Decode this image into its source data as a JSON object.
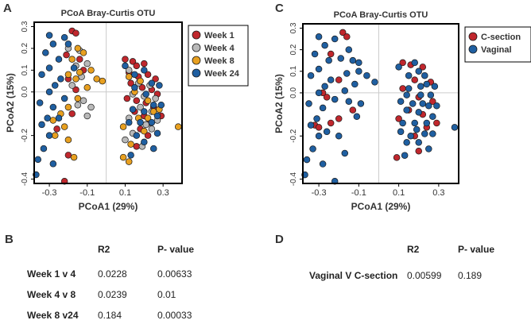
{
  "panel_labels": [
    "A",
    "B",
    "C",
    "D"
  ],
  "chart_data": [
    {
      "type": "scatter",
      "title": "PCoA Bray-Curtis OTU",
      "xlabel": "PCoA1 (29%)",
      "ylabel": "PCoA2 (15%)",
      "xlim": [
        -0.38,
        0.4
      ],
      "ylim": [
        -0.42,
        0.32
      ],
      "xticks": [
        -0.3,
        -0.1,
        0.1,
        0.3
      ],
      "xtick_labels": [
        "-0.3",
        "-0.1",
        "0.1",
        "0.3"
      ],
      "yticks": [
        -0.4,
        -0.2,
        0.0,
        0.1,
        0.2,
        0.3
      ],
      "ytick_labels": [
        "-0.4",
        "-0.2",
        "0.0",
        "0.1",
        "0.2",
        "0.3"
      ],
      "grid": "zero-lines",
      "legend_position": "top-right",
      "series": [
        {
          "name": "Week 1",
          "color": "#c0272d",
          "points": [
            [
              -0.18,
              0.28
            ],
            [
              -0.16,
              0.27
            ],
            [
              -0.21,
              0.17
            ],
            [
              -0.14,
              0.15
            ],
            [
              -0.12,
              0.1
            ],
            [
              -0.2,
              0.06
            ],
            [
              -0.16,
              0.01
            ],
            [
              -0.18,
              -0.1
            ],
            [
              -0.26,
              -0.17
            ],
            [
              -0.2,
              -0.29
            ],
            [
              -0.22,
              -0.41
            ],
            [
              0.1,
              0.15
            ],
            [
              0.14,
              0.14
            ],
            [
              0.16,
              0.12
            ],
            [
              0.2,
              0.13
            ],
            [
              0.12,
              0.09
            ],
            [
              0.17,
              0.07
            ],
            [
              0.22,
              0.08
            ],
            [
              0.26,
              0.06
            ],
            [
              0.13,
              0.04
            ],
            [
              0.19,
              0.02
            ],
            [
              0.24,
              0.01
            ],
            [
              0.27,
              -0.01
            ],
            [
              0.11,
              -0.03
            ],
            [
              0.16,
              -0.04
            ],
            [
              0.21,
              -0.05
            ],
            [
              0.25,
              -0.07
            ],
            [
              0.15,
              -0.09
            ],
            [
              0.2,
              -0.11
            ],
            [
              0.23,
              -0.14
            ],
            [
              0.18,
              -0.17
            ],
            [
              0.22,
              -0.2
            ],
            [
              0.16,
              -0.25
            ],
            [
              0.29,
              -0.11
            ]
          ]
        },
        {
          "name": "Week 4",
          "color": "#b9b9b9",
          "points": [
            [
              -0.2,
              0.2
            ],
            [
              -0.14,
              0.19
            ],
            [
              -0.1,
              0.13
            ],
            [
              -0.16,
              0.12
            ],
            [
              -0.13,
              0.07
            ],
            [
              -0.18,
              0.03
            ],
            [
              -0.12,
              -0.04
            ],
            [
              -0.08,
              -0.07
            ],
            [
              -0.15,
              -0.06
            ],
            [
              -0.1,
              -0.11
            ],
            [
              0.12,
              0.1
            ],
            [
              0.17,
              0.04
            ],
            [
              0.23,
              0.03
            ],
            [
              0.14,
              -0.01
            ],
            [
              0.2,
              -0.02
            ],
            [
              0.26,
              -0.03
            ],
            [
              0.18,
              -0.07
            ],
            [
              0.24,
              -0.09
            ],
            [
              0.12,
              -0.12
            ],
            [
              0.21,
              -0.15
            ],
            [
              0.27,
              -0.13
            ],
            [
              0.14,
              -0.19
            ],
            [
              0.19,
              -0.25
            ],
            [
              0.24,
              -0.17
            ],
            [
              0.1,
              -0.22
            ]
          ]
        },
        {
          "name": "Week 8",
          "color": "#e8a020",
          "points": [
            [
              -0.15,
              0.2
            ],
            [
              -0.18,
              0.15
            ],
            [
              -0.12,
              0.18
            ],
            [
              -0.14,
              0.09
            ],
            [
              -0.08,
              0.1
            ],
            [
              -0.05,
              0.06
            ],
            [
              -0.02,
              0.05
            ],
            [
              -0.16,
              0.06
            ],
            [
              -0.2,
              0.08
            ],
            [
              -0.1,
              0.02
            ],
            [
              -0.15,
              -0.03
            ],
            [
              -0.2,
              -0.07
            ],
            [
              -0.24,
              -0.1
            ],
            [
              -0.28,
              -0.13
            ],
            [
              -0.22,
              -0.16
            ],
            [
              -0.27,
              -0.2
            ],
            [
              -0.2,
              -0.22
            ],
            [
              -0.17,
              -0.3
            ],
            [
              0.12,
              0.07
            ],
            [
              0.18,
              0.05
            ],
            [
              0.15,
              0.0
            ],
            [
              0.22,
              -0.04
            ],
            [
              0.25,
              -0.09
            ],
            [
              0.17,
              -0.12
            ],
            [
              0.22,
              -0.12
            ],
            [
              0.28,
              -0.08
            ],
            [
              0.09,
              -0.16
            ],
            [
              0.2,
              -0.18
            ],
            [
              0.38,
              -0.16
            ],
            [
              0.13,
              -0.24
            ],
            [
              0.09,
              -0.3
            ],
            [
              0.12,
              -0.32
            ]
          ]
        },
        {
          "name": "Week 24",
          "color": "#1f5fa1",
          "points": [
            [
              -0.3,
              0.26
            ],
            [
              -0.28,
              0.22
            ],
            [
              -0.32,
              0.18
            ],
            [
              -0.22,
              0.25
            ],
            [
              -0.25,
              0.15
            ],
            [
              -0.3,
              0.11
            ],
            [
              -0.34,
              0.08
            ],
            [
              -0.24,
              0.06
            ],
            [
              -0.27,
              0.03
            ],
            [
              -0.3,
              0.0
            ],
            [
              -0.22,
              -0.03
            ],
            [
              -0.35,
              -0.05
            ],
            [
              -0.28,
              -0.07
            ],
            [
              -0.31,
              -0.12
            ],
            [
              -0.34,
              -0.15
            ],
            [
              -0.3,
              -0.2
            ],
            [
              -0.33,
              -0.26
            ],
            [
              -0.36,
              -0.31
            ],
            [
              -0.37,
              -0.38
            ],
            [
              -0.28,
              -0.33
            ],
            [
              -0.25,
              -0.12
            ],
            [
              -0.2,
              0.22
            ],
            [
              -0.17,
              0.11
            ],
            [
              0.1,
              0.12
            ],
            [
              0.15,
              0.08
            ],
            [
              0.2,
              0.1
            ],
            [
              0.24,
              0.04
            ],
            [
              0.28,
              0.03
            ],
            [
              0.15,
              0.02
            ],
            [
              0.21,
              -0.01
            ],
            [
              0.25,
              -0.06
            ],
            [
              0.29,
              -0.06
            ],
            [
              0.14,
              -0.08
            ],
            [
              0.2,
              -0.09
            ],
            [
              0.27,
              -0.11
            ],
            [
              0.12,
              -0.14
            ],
            [
              0.18,
              -0.14
            ],
            [
              0.24,
              -0.14
            ],
            [
              0.16,
              -0.2
            ],
            [
              0.27,
              -0.19
            ],
            [
              0.2,
              -0.23
            ],
            [
              0.25,
              -0.26
            ],
            [
              0.13,
              -0.29
            ]
          ]
        }
      ]
    },
    {
      "type": "scatter",
      "title": "PCoA Bray-Curtis OTU",
      "xlabel": "PCoA1 (29%)",
      "ylabel": "PCoA2 (15%)",
      "xlim": [
        -0.38,
        0.4
      ],
      "ylim": [
        -0.42,
        0.32
      ],
      "xticks": [
        -0.3,
        -0.1,
        0.1,
        0.3
      ],
      "xtick_labels": [
        "-0.3",
        "-0.1",
        "0.1",
        "0.3"
      ],
      "yticks": [
        -0.4,
        -0.2,
        0.0,
        0.1,
        0.2,
        0.3
      ],
      "ytick_labels": [
        "-0.4",
        "-0.2",
        "0.0",
        "0.1",
        "0.2",
        "0.3"
      ],
      "grid": "zero-lines",
      "legend_position": "top-right",
      "series": [
        {
          "name": "C-section",
          "color": "#c0272d",
          "points": [
            [
              -0.18,
              0.28
            ],
            [
              -0.16,
              0.26
            ],
            [
              -0.24,
              0.18
            ],
            [
              -0.2,
              0.06
            ],
            [
              -0.26,
              -0.02
            ],
            [
              -0.28,
              0.0
            ],
            [
              -0.32,
              -0.15
            ],
            [
              -0.3,
              -0.16
            ],
            [
              -0.2,
              -0.12
            ],
            [
              -0.13,
              -0.08
            ],
            [
              -0.24,
              -0.14
            ],
            [
              0.12,
              0.14
            ],
            [
              0.16,
              0.13
            ],
            [
              0.22,
              0.12
            ],
            [
              0.18,
              0.06
            ],
            [
              0.26,
              0.05
            ],
            [
              0.12,
              0.02
            ],
            [
              0.2,
              -0.02
            ],
            [
              0.27,
              -0.04
            ],
            [
              0.15,
              -0.08
            ],
            [
              0.22,
              -0.1
            ],
            [
              0.1,
              -0.12
            ],
            [
              0.24,
              -0.16
            ],
            [
              0.18,
              -0.2
            ],
            [
              0.2,
              -0.27
            ],
            [
              0.09,
              -0.3
            ],
            [
              0.29,
              -0.14
            ]
          ]
        },
        {
          "name": "Vaginal",
          "color": "#1f5fa1",
          "points": [
            [
              -0.3,
              0.26
            ],
            [
              -0.27,
              0.22
            ],
            [
              -0.32,
              0.18
            ],
            [
              -0.22,
              0.25
            ],
            [
              -0.15,
              0.2
            ],
            [
              -0.19,
              0.16
            ],
            [
              -0.13,
              0.15
            ],
            [
              -0.25,
              0.15
            ],
            [
              -0.3,
              0.11
            ],
            [
              -0.34,
              0.08
            ],
            [
              -0.24,
              0.06
            ],
            [
              -0.16,
              0.09
            ],
            [
              -0.1,
              0.1
            ],
            [
              -0.06,
              0.08
            ],
            [
              -0.12,
              0.04
            ],
            [
              -0.02,
              0.05
            ],
            [
              -0.27,
              0.03
            ],
            [
              -0.3,
              0.0
            ],
            [
              -0.17,
              0.01
            ],
            [
              -0.22,
              -0.03
            ],
            [
              -0.35,
              -0.05
            ],
            [
              -0.28,
              -0.07
            ],
            [
              -0.15,
              -0.04
            ],
            [
              -0.09,
              -0.05
            ],
            [
              -0.11,
              -0.11
            ],
            [
              -0.31,
              -0.12
            ],
            [
              -0.34,
              -0.15
            ],
            [
              -0.26,
              -0.18
            ],
            [
              -0.2,
              -0.2
            ],
            [
              -0.3,
              -0.2
            ],
            [
              -0.33,
              -0.26
            ],
            [
              -0.36,
              -0.31
            ],
            [
              -0.37,
              -0.38
            ],
            [
              -0.28,
              -0.33
            ],
            [
              -0.22,
              -0.41
            ],
            [
              -0.17,
              -0.28
            ],
            [
              -0.1,
              0.14
            ],
            [
              0.1,
              0.12
            ],
            [
              0.15,
              0.08
            ],
            [
              0.2,
              0.1
            ],
            [
              0.24,
              0.04
            ],
            [
              0.28,
              0.03
            ],
            [
              0.15,
              0.02
            ],
            [
              0.21,
              -0.01
            ],
            [
              0.25,
              -0.06
            ],
            [
              0.29,
              -0.06
            ],
            [
              0.14,
              -0.08
            ],
            [
              0.2,
              -0.09
            ],
            [
              0.27,
              -0.11
            ],
            [
              0.12,
              -0.14
            ],
            [
              0.18,
              -0.14
            ],
            [
              0.24,
              -0.14
            ],
            [
              0.16,
              -0.2
            ],
            [
              0.27,
              -0.19
            ],
            [
              0.2,
              -0.23
            ],
            [
              0.25,
              -0.26
            ],
            [
              0.13,
              -0.29
            ],
            [
              0.14,
              -0.01
            ],
            [
              0.18,
              0.14
            ],
            [
              0.23,
              0.08
            ],
            [
              0.11,
              -0.04
            ],
            [
              0.17,
              -0.05
            ],
            [
              0.22,
              -0.05
            ],
            [
              0.26,
              -0.01
            ],
            [
              0.19,
              -0.17
            ],
            [
              0.23,
              -0.19
            ],
            [
              0.38,
              -0.16
            ],
            [
              0.14,
              -0.23
            ],
            [
              0.11,
              -0.18
            ],
            [
              0.21,
              0.03
            ]
          ]
        }
      ]
    }
  ],
  "tables": [
    {
      "label": "B",
      "headers": [
        "R2",
        "P- value"
      ],
      "rows": [
        {
          "name": "Week 1 v 4",
          "r2": "0.0228",
          "p": "0.00633"
        },
        {
          "name": "Week 4 v 8",
          "r2": "0.0239",
          "p": "0.01"
        },
        {
          "name": "Week 8 v24",
          "r2": "0.184",
          "p": "0.00033"
        }
      ]
    },
    {
      "label": "D",
      "headers": [
        "R2",
        "P- value"
      ],
      "rows": [
        {
          "name": "Vaginal V C-section",
          "r2": "0.00599",
          "p": "0.189"
        }
      ]
    }
  ]
}
